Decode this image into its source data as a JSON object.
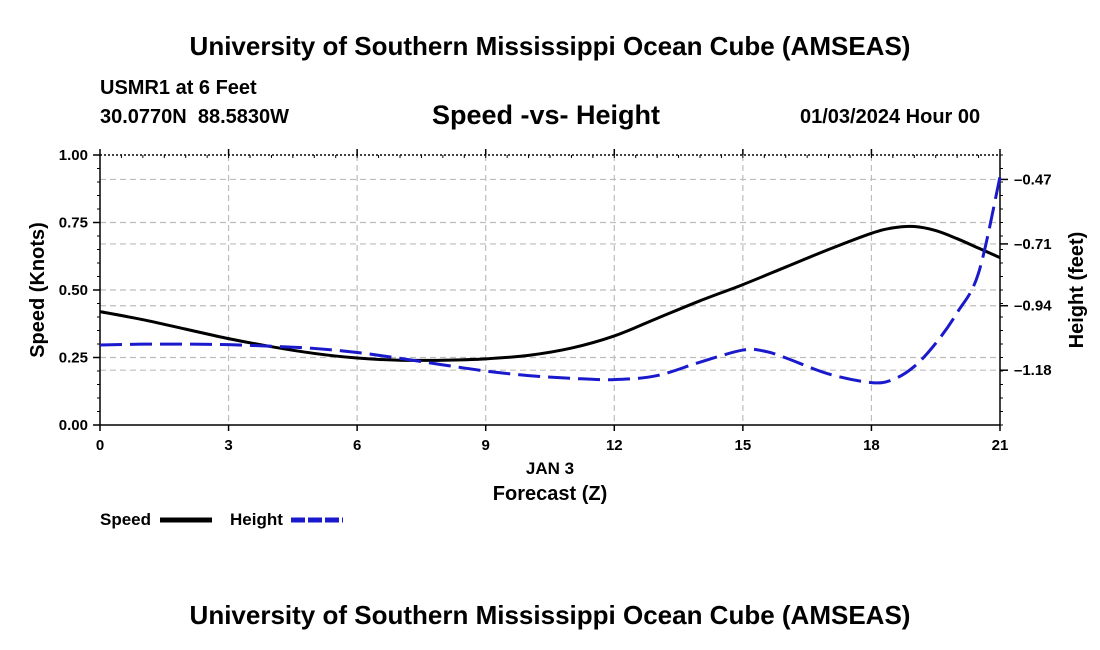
{
  "header": {
    "title": "University of Southern Mississippi Ocean Cube (AMSEAS)",
    "station": "USMR1 at 6 Feet",
    "coordinates": "30.0770N  88.5830W",
    "subtitle": "Speed -vs- Height",
    "datetime": "01/03/2024 Hour 00"
  },
  "footer": {
    "title": "University of Southern Mississippi Ocean Cube (AMSEAS)"
  },
  "chart_data": {
    "type": "line",
    "title": "Speed -vs- Height",
    "xlabel": "Forecast (Z)",
    "xlabel_date": "JAN 3",
    "ylabel": "Speed (Knots)",
    "y2label": "Height (feet)",
    "xlim": [
      0,
      21
    ],
    "ylim": [
      0,
      1
    ],
    "y2lim": [
      -1.3839,
      -0.3791
    ],
    "grid": true,
    "legend_position": "bottom-left",
    "x_ticks": [
      0,
      3,
      6,
      9,
      12,
      15,
      18,
      21
    ],
    "x_tick_labels": [
      "0",
      "3",
      "6",
      "9",
      "12",
      "15",
      "18",
      "21"
    ],
    "y_ticks": [
      0.0,
      0.25,
      0.5,
      0.75,
      1.0
    ],
    "y_tick_labels": [
      "0.00",
      "0.25",
      "0.50",
      "0.75",
      "1.00"
    ],
    "y2_ticks": [
      -0.47,
      -0.71,
      -0.94,
      -1.18
    ],
    "y2_tick_labels": [
      "–0.47",
      "–0.71",
      "–0.94",
      "–1.18"
    ],
    "series": [
      {
        "name": "Speed",
        "axis": "left",
        "color": "#000000",
        "style": "solid",
        "x": [
          0,
          1,
          2,
          3,
          4,
          5,
          6,
          7,
          8,
          9,
          10,
          11,
          12,
          13,
          14,
          15,
          16,
          17,
          18,
          18.5,
          19,
          19.5,
          20,
          20.5,
          21
        ],
        "values": [
          0.42,
          0.39,
          0.355,
          0.32,
          0.29,
          0.265,
          0.248,
          0.24,
          0.24,
          0.245,
          0.258,
          0.285,
          0.33,
          0.395,
          0.46,
          0.52,
          0.585,
          0.65,
          0.71,
          0.73,
          0.735,
          0.72,
          0.69,
          0.655,
          0.62
        ]
      },
      {
        "name": "Height",
        "axis": "right",
        "color": "#1a1acc",
        "style": "dashed",
        "x": [
          0,
          1,
          2,
          3,
          4,
          5,
          6,
          7,
          8,
          9,
          10,
          11,
          12,
          13,
          14,
          15,
          15.5,
          16,
          17,
          18,
          18.5,
          19,
          19.5,
          20,
          20.5,
          21
        ],
        "values": [
          -1.086,
          -1.083,
          -1.083,
          -1.085,
          -1.091,
          -1.099,
          -1.114,
          -1.136,
          -1.16,
          -1.183,
          -1.2,
          -1.21,
          -1.215,
          -1.2,
          -1.15,
          -1.105,
          -1.109,
          -1.134,
          -1.194,
          -1.226,
          -1.215,
          -1.166,
          -1.08,
          -0.966,
          -0.818,
          -0.46
        ]
      }
    ]
  }
}
